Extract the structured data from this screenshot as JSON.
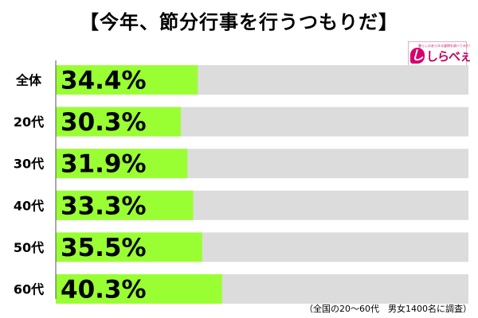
{
  "chart_data": {
    "type": "bar",
    "orientation": "horizontal",
    "title": "【今年、節分行事を行うつもりだ】",
    "categories": [
      "全体",
      "20代",
      "30代",
      "40代",
      "50代",
      "60代"
    ],
    "values": [
      34.4,
      30.3,
      31.9,
      33.3,
      35.5,
      40.3
    ],
    "value_labels": [
      "34.4%",
      "30.3%",
      "31.9%",
      "33.3%",
      "35.5%",
      "40.3%"
    ],
    "xlim": [
      0,
      100
    ],
    "grid": false,
    "bar_color": "#99ff33",
    "track_color": "#dcdcdc",
    "source_note": "（全国の20〜60代　男女1400名に調査）"
  },
  "brand": {
    "tagline": "暮らしのあらゆる疑問を調べてみた！",
    "glyph": "し",
    "name": "しらべぇ",
    "color": "#d4006d"
  }
}
